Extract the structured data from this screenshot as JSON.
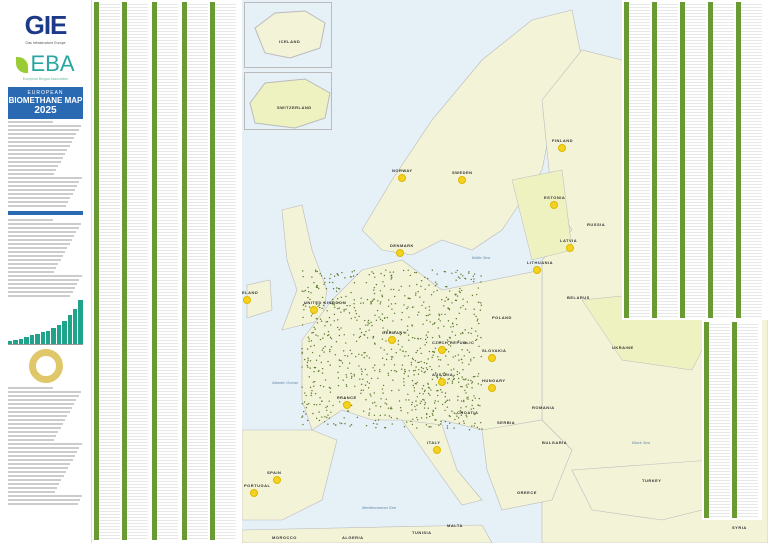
{
  "header": {
    "gie_logo": "GIE",
    "gie_subtitle": "Gas Infrastructure Europe",
    "eba_logo": "EBA",
    "eba_subtitle": "European Biogas Association",
    "banner_line1": "EUROPEAN",
    "banner_title": "BIOMETHANE MAP",
    "banner_year": "2025"
  },
  "colors": {
    "land": "#f3f3d8",
    "land_highlight": "#eef2c0",
    "sea": "#e6f0f7",
    "banner": "#2a6ab3",
    "plant_dot": "#5a7a2a",
    "country_marker": "#f4d21f",
    "chart_bar": "#1fa38a"
  },
  "chart_trend": [
    5,
    7,
    9,
    11,
    14,
    17,
    19,
    22,
    26,
    31,
    38,
    47,
    58,
    72
  ],
  "insets": {
    "iceland": "ICELAND",
    "switzerland": "SWITZERLAND"
  },
  "countries": {
    "norway": "NORWAY",
    "sweden": "SWEDEN",
    "finland": "FINLAND",
    "estonia": "ESTONIA",
    "latvia": "LATVIA",
    "lithuania": "LITHUANIA",
    "russia": "RUSSIA",
    "belarus": "BELARUS",
    "denmark": "DENMARK",
    "ireland": "IRELAND",
    "uk": "UNITED KINGDOM",
    "germany": "GERMANY",
    "poland": "POLAND",
    "czech": "CZECH REPUBLIC",
    "slovakia": "SLOVAKIA",
    "austria": "AUSTRIA",
    "hungary": "HUNGARY",
    "ukraine": "UKRAINE",
    "romania": "ROMANIA",
    "bulgaria": "BULGARIA",
    "france": "FRANCE",
    "spain": "SPAIN",
    "portugal": "PORTUGAL",
    "italy": "ITALY",
    "greece": "GREECE",
    "turkey": "TURKEY",
    "serbia": "SERBIA",
    "croatia": "CROATIA",
    "morocco": "MOROCCO",
    "algeria": "ALGERIA",
    "tunisia": "TUNISIA",
    "malta": "MALTA",
    "syria": "SYRIA"
  },
  "seas": {
    "atlantic": "Atlantic Ocean",
    "baltic": "Baltic Sea",
    "black": "Black Sea",
    "mediterranean": "Mediterranean Sea"
  }
}
